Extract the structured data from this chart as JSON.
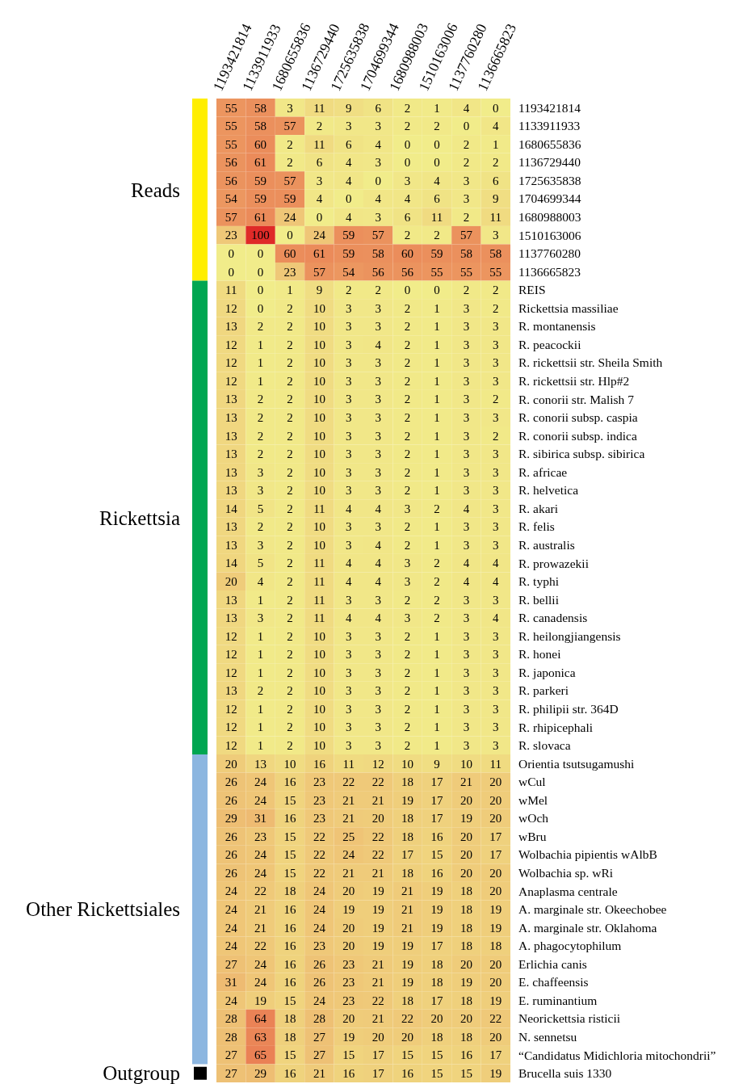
{
  "chart_data": {
    "type": "heatmap",
    "categories": [
      "1193421814",
      "1133911933",
      "1680655836",
      "1136729440",
      "1725635838",
      "1704699344",
      "1680988003",
      "1510163006",
      "1137760280",
      "1136665823"
    ],
    "y_categories": [
      "1193421814",
      "1133911933",
      "1680655836",
      "1136729440",
      "1725635838",
      "1704699344",
      "1680988003",
      "1510163006",
      "1137760280",
      "1136665823",
      "REIS",
      "Rickettsia massiliae",
      "R. montanensis",
      "R. peacockii",
      "R. rickettsii str. Sheila Smith",
      "R. rickettsii str. Hlp#2",
      "R. conorii str. Malish 7",
      "R. conorii subsp. caspia",
      "R. conorii subsp. indica",
      "R. sibirica subsp. sibirica",
      "R. africae",
      "R. helvetica",
      "R. akari",
      "R. felis",
      "R. australis",
      "R. prowazekii",
      "R. typhi",
      "R. bellii",
      "R. canadensis",
      "R. heilongjiangensis",
      "R. honei",
      "R. japonica",
      "R. parkeri",
      "R. philipii str. 364D",
      "R. rhipicephali",
      "R. slovaca",
      "Orientia tsutsugamushi",
      "wCul",
      "wMel",
      "wOch",
      "wBru",
      "Wolbachia pipientis wAlbB",
      "Wolbachia sp. wRi",
      "Anaplasma centrale",
      "A. marginale str. Okeechobee",
      "A. marginale str. Oklahoma",
      "A. phagocytophilum",
      "Erlichia canis",
      "E. chaffeensis",
      "E. ruminantium",
      "Neorickettsia risticii",
      "N. sennetsu",
      "“Candidatus Midichloria mitochondrii”",
      "Brucella suis 1330"
    ],
    "cells": [
      [
        55,
        58,
        3,
        11,
        9,
        6,
        2,
        1,
        4,
        0
      ],
      [
        55,
        58,
        57,
        2,
        3,
        3,
        2,
        2,
        0,
        4
      ],
      [
        55,
        60,
        2,
        11,
        6,
        4,
        0,
        0,
        2,
        1
      ],
      [
        56,
        61,
        2,
        6,
        4,
        3,
        0,
        0,
        2,
        2
      ],
      [
        56,
        59,
        57,
        3,
        4,
        0,
        3,
        4,
        3,
        6
      ],
      [
        54,
        59,
        59,
        4,
        0,
        4,
        4,
        6,
        3,
        9
      ],
      [
        57,
        61,
        24,
        0,
        4,
        3,
        6,
        11,
        2,
        11
      ],
      [
        23,
        100,
        0,
        24,
        59,
        57,
        2,
        2,
        57,
        3
      ],
      [
        0,
        0,
        60,
        61,
        59,
        58,
        60,
        59,
        58,
        58
      ],
      [
        0,
        0,
        23,
        57,
        54,
        56,
        56,
        55,
        55,
        55
      ],
      [
        11,
        0,
        1,
        9,
        2,
        2,
        0,
        0,
        2,
        2
      ],
      [
        12,
        0,
        2,
        10,
        3,
        3,
        2,
        1,
        3,
        2
      ],
      [
        13,
        2,
        2,
        10,
        3,
        3,
        2,
        1,
        3,
        3
      ],
      [
        12,
        1,
        2,
        10,
        3,
        4,
        2,
        1,
        3,
        3
      ],
      [
        12,
        1,
        2,
        10,
        3,
        3,
        2,
        1,
        3,
        3
      ],
      [
        12,
        1,
        2,
        10,
        3,
        3,
        2,
        1,
        3,
        3
      ],
      [
        13,
        2,
        2,
        10,
        3,
        3,
        2,
        1,
        3,
        2
      ],
      [
        13,
        2,
        2,
        10,
        3,
        3,
        2,
        1,
        3,
        3
      ],
      [
        13,
        2,
        2,
        10,
        3,
        3,
        2,
        1,
        3,
        2
      ],
      [
        13,
        2,
        2,
        10,
        3,
        3,
        2,
        1,
        3,
        3
      ],
      [
        13,
        3,
        2,
        10,
        3,
        3,
        2,
        1,
        3,
        3
      ],
      [
        13,
        3,
        2,
        10,
        3,
        3,
        2,
        1,
        3,
        3
      ],
      [
        14,
        5,
        2,
        11,
        4,
        4,
        3,
        2,
        4,
        3
      ],
      [
        13,
        2,
        2,
        10,
        3,
        3,
        2,
        1,
        3,
        3
      ],
      [
        13,
        3,
        2,
        10,
        3,
        4,
        2,
        1,
        3,
        3
      ],
      [
        14,
        5,
        2,
        11,
        4,
        4,
        3,
        2,
        4,
        4
      ],
      [
        20,
        4,
        2,
        11,
        4,
        4,
        3,
        2,
        4,
        4
      ],
      [
        13,
        1,
        2,
        11,
        3,
        3,
        2,
        2,
        3,
        3
      ],
      [
        13,
        3,
        2,
        11,
        4,
        4,
        3,
        2,
        3,
        4
      ],
      [
        12,
        1,
        2,
        10,
        3,
        3,
        2,
        1,
        3,
        3
      ],
      [
        12,
        1,
        2,
        10,
        3,
        3,
        2,
        1,
        3,
        3
      ],
      [
        12,
        1,
        2,
        10,
        3,
        3,
        2,
        1,
        3,
        3
      ],
      [
        13,
        2,
        2,
        10,
        3,
        3,
        2,
        1,
        3,
        3
      ],
      [
        12,
        1,
        2,
        10,
        3,
        3,
        2,
        1,
        3,
        3
      ],
      [
        12,
        1,
        2,
        10,
        3,
        3,
        2,
        1,
        3,
        3
      ],
      [
        12,
        1,
        2,
        10,
        3,
        3,
        2,
        1,
        3,
        3
      ],
      [
        20,
        13,
        10,
        16,
        11,
        12,
        10,
        9,
        10,
        11
      ],
      [
        26,
        24,
        16,
        23,
        22,
        22,
        18,
        17,
        21,
        20
      ],
      [
        26,
        24,
        15,
        23,
        21,
        21,
        19,
        17,
        20,
        20
      ],
      [
        29,
        31,
        16,
        23,
        21,
        20,
        18,
        17,
        19,
        20
      ],
      [
        26,
        23,
        15,
        22,
        25,
        22,
        18,
        16,
        20,
        17
      ],
      [
        26,
        24,
        15,
        22,
        24,
        22,
        17,
        15,
        20,
        17
      ],
      [
        26,
        24,
        15,
        22,
        21,
        21,
        18,
        16,
        20,
        20
      ],
      [
        24,
        22,
        18,
        24,
        20,
        19,
        21,
        19,
        18,
        20
      ],
      [
        24,
        21,
        16,
        24,
        19,
        19,
        21,
        19,
        18,
        19
      ],
      [
        24,
        21,
        16,
        24,
        20,
        19,
        21,
        19,
        18,
        19
      ],
      [
        24,
        22,
        16,
        23,
        20,
        19,
        19,
        17,
        18,
        18
      ],
      [
        27,
        24,
        16,
        26,
        23,
        21,
        19,
        18,
        20,
        20
      ],
      [
        31,
        24,
        16,
        26,
        23,
        21,
        19,
        18,
        19,
        20
      ],
      [
        24,
        19,
        15,
        24,
        23,
        22,
        18,
        17,
        18,
        19
      ],
      [
        28,
        64,
        18,
        28,
        20,
        21,
        22,
        20,
        20,
        22
      ],
      [
        28,
        63,
        18,
        27,
        19,
        20,
        20,
        18,
        18,
        20
      ],
      [
        27,
        65,
        15,
        27,
        15,
        17,
        15,
        15,
        16,
        17
      ],
      [
        27,
        29,
        16,
        21,
        16,
        17,
        16,
        15,
        15,
        19
      ]
    ],
    "data_labels": true,
    "annotations": [
      "Reads",
      "Rickettsia",
      "Other Rickettsiales",
      "Outgroup"
    ]
  }
}
